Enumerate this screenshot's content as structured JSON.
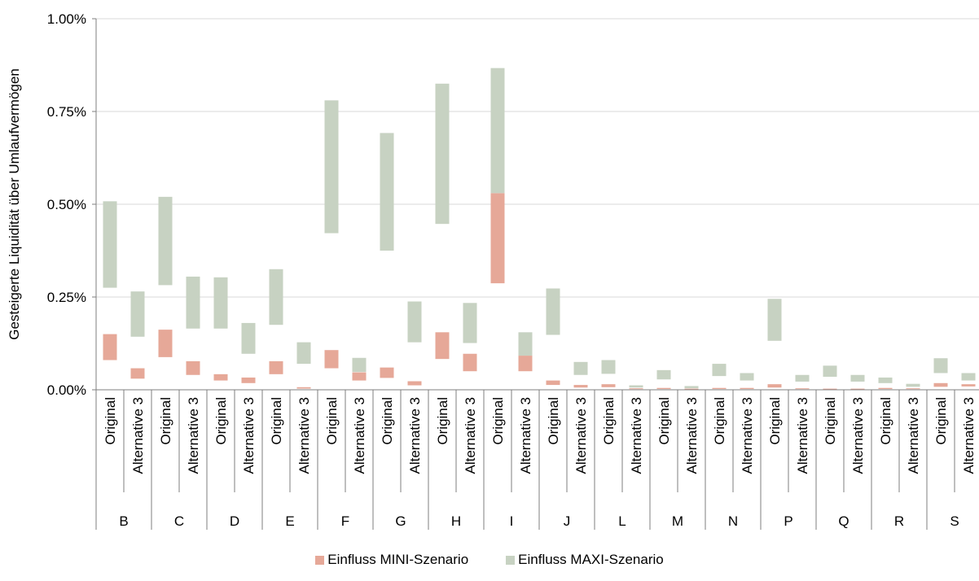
{
  "chart_data": {
    "type": "floating-stacked-bar",
    "ylabel": "Gesteigerte Liquidität über Umlaufvermögen",
    "yticks": [
      "0.00%",
      "0.25%",
      "0.50%",
      "0.75%",
      "1.00%"
    ],
    "ylim": [
      0,
      1.0
    ],
    "y_unit": "%",
    "grid": "horizontal",
    "legend_position": "bottom",
    "subcategory_labels": [
      "Original",
      "Alternative 3"
    ],
    "groups": [
      "B",
      "C",
      "D",
      "E",
      "F",
      "G",
      "H",
      "I",
      "J",
      "L",
      "M",
      "N",
      "P",
      "Q",
      "R",
      "S"
    ],
    "series": [
      {
        "name": "Einfluss MINI-Szenario",
        "color": "#e6a898",
        "ranges": [
          [
            0.08,
            0.15
          ],
          [
            0.03,
            0.058
          ],
          [
            0.088,
            0.162
          ],
          [
            0.04,
            0.077
          ],
          [
            0.025,
            0.042
          ],
          [
            0.018,
            0.033
          ],
          [
            0.042,
            0.077
          ],
          [
            0.003,
            0.007
          ],
          [
            0.058,
            0.107
          ],
          [
            0.025,
            0.047
          ],
          [
            0.032,
            0.06
          ],
          [
            0.012,
            0.023
          ],
          [
            0.083,
            0.155
          ],
          [
            0.05,
            0.097
          ],
          [
            0.287,
            0.53
          ],
          [
            0.05,
            0.092
          ],
          [
            0.013,
            0.025
          ],
          [
            0.006,
            0.013
          ],
          [
            0.007,
            0.015
          ],
          [
            0.002,
            0.004
          ],
          [
            0.002,
            0.005
          ],
          [
            0.001,
            0.003
          ],
          [
            0.002,
            0.005
          ],
          [
            0.002,
            0.005
          ],
          [
            0.006,
            0.015
          ],
          [
            0.002,
            0.004
          ],
          [
            0.001,
            0.003
          ],
          [
            0.001,
            0.003
          ],
          [
            0.002,
            0.005
          ],
          [
            0.002,
            0.004
          ],
          [
            0.008,
            0.018
          ],
          [
            0.009,
            0.015
          ]
        ]
      },
      {
        "name": "Einfluss MAXI-Szenario",
        "color": "#c7d2c2",
        "ranges": [
          [
            0.275,
            0.508
          ],
          [
            0.143,
            0.265
          ],
          [
            0.282,
            0.52
          ],
          [
            0.165,
            0.305
          ],
          [
            0.165,
            0.303
          ],
          [
            0.097,
            0.18
          ],
          [
            0.175,
            0.325
          ],
          [
            0.07,
            0.128
          ],
          [
            0.422,
            0.78
          ],
          [
            0.048,
            0.086
          ],
          [
            0.375,
            0.692
          ],
          [
            0.128,
            0.238
          ],
          [
            0.447,
            0.825
          ],
          [
            0.126,
            0.234
          ],
          [
            0.53,
            0.867
          ],
          [
            0.092,
            0.155
          ],
          [
            0.148,
            0.273
          ],
          [
            0.04,
            0.075
          ],
          [
            0.043,
            0.08
          ],
          [
            0.006,
            0.012
          ],
          [
            0.028,
            0.053
          ],
          [
            0.004,
            0.01
          ],
          [
            0.037,
            0.07
          ],
          [
            0.025,
            0.045
          ],
          [
            0.132,
            0.245
          ],
          [
            0.022,
            0.04
          ],
          [
            0.035,
            0.065
          ],
          [
            0.022,
            0.04
          ],
          [
            0.018,
            0.033
          ],
          [
            0.008,
            0.016
          ],
          [
            0.045,
            0.085
          ],
          [
            0.025,
            0.045
          ]
        ]
      }
    ]
  }
}
